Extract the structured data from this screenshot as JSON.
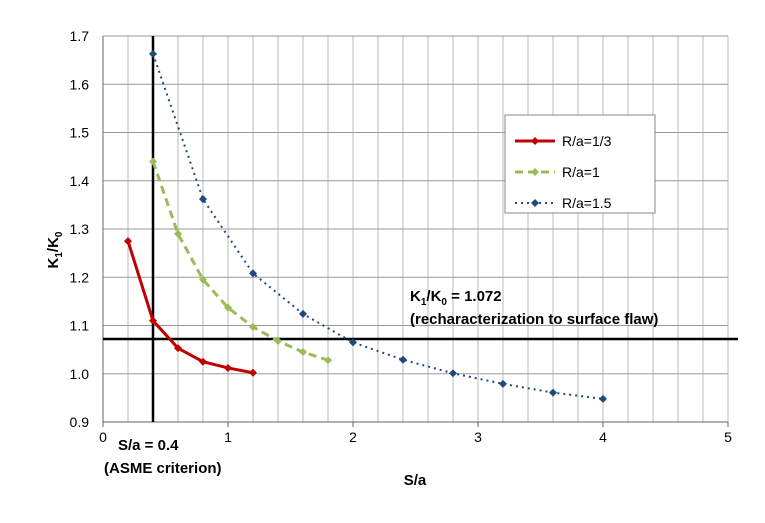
{
  "chart_data": {
    "type": "line",
    "title": "",
    "xlabel": "S/a",
    "ylabel_main": "K",
    "ylabel_sub1": "1",
    "ylabel_mid": "/K",
    "ylabel_sub2": "0",
    "xlim": [
      0,
      5
    ],
    "ylim": [
      0.9,
      1.7
    ],
    "xticks": [
      "0",
      "1",
      "2",
      "3",
      "4",
      "5"
    ],
    "yticks": [
      "0.9",
      "1.0",
      "1.1",
      "1.2",
      "1.3",
      "1.4",
      "1.5",
      "1.6",
      "1.7"
    ],
    "grid": true,
    "legend_position": "top-right",
    "series": [
      {
        "name": "R/a=1/3",
        "color": "#c00000",
        "style": "solid",
        "x": [
          0.2,
          0.4,
          0.6,
          0.8,
          1.0,
          1.2
        ],
        "y": [
          1.275,
          1.11,
          1.053,
          1.025,
          1.012,
          1.002
        ]
      },
      {
        "name": "R/a=1",
        "color": "#9bbb59",
        "style": "dashed",
        "x": [
          0.4,
          0.6,
          0.8,
          1.0,
          1.2,
          1.4,
          1.6,
          1.8
        ],
        "y": [
          1.44,
          1.29,
          1.195,
          1.137,
          1.097,
          1.068,
          1.045,
          1.028
        ]
      },
      {
        "name": "R/a=1.5",
        "color": "#1f497d",
        "style": "dotted",
        "x": [
          0.4,
          0.8,
          1.2,
          1.6,
          2.0,
          2.4,
          2.8,
          3.2,
          3.6,
          4.0
        ],
        "y": [
          1.663,
          1.362,
          1.208,
          1.124,
          1.065,
          1.029,
          1.001,
          0.979,
          0.961,
          0.948
        ]
      }
    ],
    "reference_lines": {
      "x": 0.4,
      "y": 1.072
    },
    "annotations": {
      "hline_main": "K",
      "hline_sub1": "1",
      "hline_mid": "/K",
      "hline_sub2": "0",
      "hline_value": " = 1.072",
      "hline_note": "(recharacterization to surface flaw)",
      "vline_label": "S/a = 0.4",
      "vline_note": "(ASME criterion)"
    }
  }
}
